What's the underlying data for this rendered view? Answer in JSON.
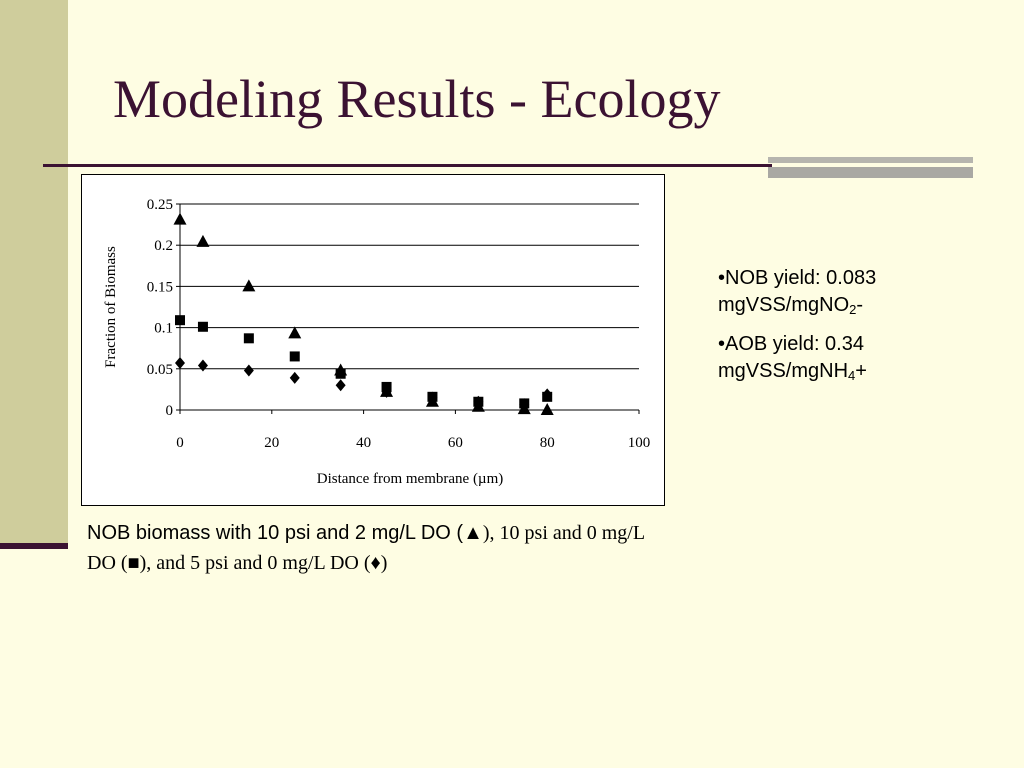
{
  "slide": {
    "title": "Modeling Results - Ecology",
    "colors": {
      "background": "#fefde3",
      "side_band": "#cfcd9c",
      "accent": "#3b1232"
    }
  },
  "bullets": [
    {
      "bullet": "•",
      "prefix": "NOB yield: 0.083 mgVSS/mgNO",
      "subscript": "2",
      "suffix": "-"
    },
    {
      "bullet": "•",
      "prefix": "AOB yield: 0.34 mgVSS/mgNH",
      "subscript": "4",
      "suffix": "+"
    }
  ],
  "caption": {
    "part1": "NOB biomass with 10 psi and 2 mg/L DO (▲",
    "part2": "), 10 psi and 0 mg/L DO (■), and 5 psi and 0 mg/L DO (♦)"
  },
  "chart_data": {
    "type": "scatter",
    "xlabel": "Distance from membrane (µm)",
    "ylabel": "Fraction of Biomass",
    "xlim": [
      0,
      100
    ],
    "ylim": [
      0,
      0.25
    ],
    "x_ticks": [
      "0",
      "20",
      "40",
      "60",
      "80",
      "100"
    ],
    "y_ticks": [
      "0",
      "0.05",
      "0.1",
      "0.15",
      "0.2",
      "0.25"
    ],
    "grid": "horizontal",
    "legend": "none",
    "series": [
      {
        "marker": "triangle",
        "color": "#000000",
        "points": [
          [
            0,
            0.231
          ],
          [
            5,
            0.204
          ],
          [
            15,
            0.15
          ],
          [
            25,
            0.093
          ],
          [
            35,
            0.048
          ],
          [
            45,
            0.022
          ],
          [
            55,
            0.01
          ],
          [
            65,
            0.004
          ],
          [
            75,
            0.001
          ],
          [
            80,
            0.0
          ]
        ]
      },
      {
        "marker": "square",
        "color": "#000000",
        "points": [
          [
            0,
            0.109
          ],
          [
            5,
            0.101
          ],
          [
            15,
            0.087
          ],
          [
            25,
            0.065
          ],
          [
            35,
            0.044
          ],
          [
            45,
            0.028
          ],
          [
            55,
            0.016
          ],
          [
            65,
            0.01
          ],
          [
            75,
            0.008
          ],
          [
            80,
            0.016
          ]
        ]
      },
      {
        "marker": "diamond",
        "color": "#000000",
        "points": [
          [
            0,
            0.057
          ],
          [
            5,
            0.054
          ],
          [
            15,
            0.048
          ],
          [
            25,
            0.039
          ],
          [
            35,
            0.03
          ],
          [
            45,
            0.022
          ],
          [
            55,
            0.015
          ],
          [
            65,
            0.01
          ],
          [
            75,
            0.007
          ],
          [
            80,
            0.019
          ]
        ]
      }
    ]
  }
}
